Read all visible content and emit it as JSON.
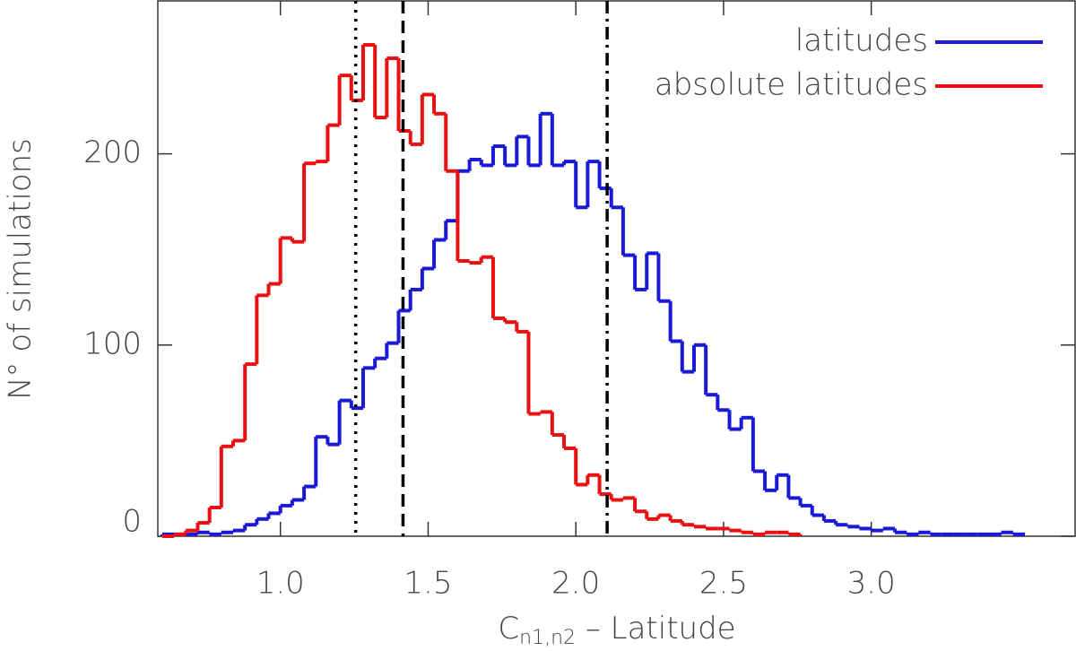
{
  "chart_data": {
    "type": "histogram",
    "x_label": {
      "main": "C",
      "sub": "n1,n2",
      "rest": " – Latitude"
    },
    "y_label": "N° of simulations",
    "bins": [
      0.6,
      0.64,
      0.68,
      0.72,
      0.76,
      0.8,
      0.84,
      0.88,
      0.92,
      0.96,
      1.0,
      1.04,
      1.08,
      1.12,
      1.16,
      1.2,
      1.24,
      1.28,
      1.32,
      1.36,
      1.4,
      1.44,
      1.48,
      1.52,
      1.56,
      1.6,
      1.64,
      1.68,
      1.72,
      1.76,
      1.8,
      1.84,
      1.88,
      1.92,
      1.96,
      2.0,
      2.04,
      2.08,
      2.12,
      2.16,
      2.2,
      2.24,
      2.28,
      2.32,
      2.36,
      2.4,
      2.44,
      2.48,
      2.52,
      2.56,
      2.6,
      2.64,
      2.68,
      2.72,
      2.76,
      2.8,
      2.84,
      2.88,
      2.92,
      2.96,
      3.0,
      3.04,
      3.08,
      3.12,
      3.16,
      3.2,
      3.24,
      3.28,
      3.32,
      3.36,
      3.4,
      3.44,
      3.48,
      3.52
    ],
    "series": [
      {
        "name": "latitudes",
        "color": "#1a1ad6",
        "values": [
          1,
          1,
          1,
          2,
          1,
          2,
          3,
          6,
          9,
          12,
          16,
          19,
          26,
          52,
          48,
          71,
          67,
          88,
          93,
          101,
          118,
          129,
          140,
          155,
          165,
          191,
          197,
          194,
          204,
          194,
          209,
          194,
          221,
          194,
          196,
          172,
          196,
          182,
          172,
          147,
          129,
          148,
          123,
          102,
          86,
          100,
          74,
          66,
          56,
          62,
          34,
          24,
          32,
          20,
          16,
          11,
          8,
          6,
          5,
          4,
          3,
          4,
          2,
          1,
          2,
          1,
          1,
          1,
          1,
          1,
          1,
          2,
          1
        ]
      },
      {
        "name": "absolute latitudes",
        "color": "#e81010",
        "values": [
          0,
          1,
          3,
          7,
          15,
          47,
          50,
          90,
          126,
          132,
          156,
          154,
          195,
          196,
          215,
          241,
          228,
          257,
          219,
          250,
          212,
          205,
          231,
          221,
          191,
          144,
          143,
          146,
          114,
          112,
          107,
          64,
          65,
          53,
          46,
          27,
          32,
          22,
          19,
          20,
          13,
          9,
          11,
          8,
          6,
          5,
          4,
          4,
          3,
          2,
          1,
          2,
          2,
          1,
          null,
          null,
          null,
          null,
          null,
          null,
          null,
          null,
          null,
          null,
          null,
          null,
          null,
          null,
          null,
          null,
          null,
          null,
          null
        ]
      }
    ],
    "vlines": [
      {
        "value": 1.255,
        "style": "dotted"
      },
      {
        "value": 1.415,
        "style": "dashed"
      },
      {
        "value": 2.106,
        "style": "dashdot"
      }
    ],
    "xlim": [
      0.585,
      3.69
    ],
    "ylim": [
      0,
      280
    ],
    "xticks": [
      {
        "value": 1,
        "label": "1.0"
      },
      {
        "value": 1.5,
        "label": "1.5"
      },
      {
        "value": 2,
        "label": "2.0"
      },
      {
        "value": 2.5,
        "label": "2.5"
      },
      {
        "value": 3,
        "label": "3.0"
      }
    ],
    "yticks": [
      0,
      100,
      200
    ],
    "legend": "upper right"
  }
}
